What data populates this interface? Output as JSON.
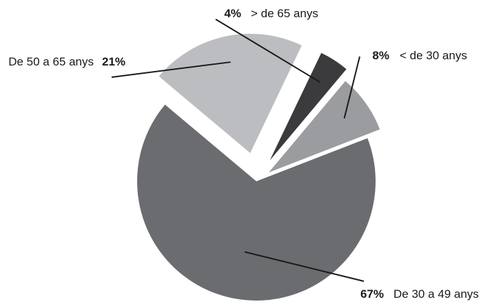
{
  "chart_data": {
    "type": "pie",
    "title": "",
    "slices": [
      {
        "label": "< de 30 anys",
        "pct_label": "8%",
        "value": 8,
        "color": "#9b9c9f"
      },
      {
        "label": "De 30 a 49 anys",
        "pct_label": "67%",
        "value": 67,
        "color": "#6b6c70"
      },
      {
        "label": "De 50 a 65 anys",
        "pct_label": "21%",
        "value": 21,
        "color": "#bcbdc0"
      },
      {
        "label": "> de 65 anys",
        "pct_label": "4%",
        "value": 4,
        "color": "#3b3b3e"
      }
    ],
    "legend": "none"
  }
}
